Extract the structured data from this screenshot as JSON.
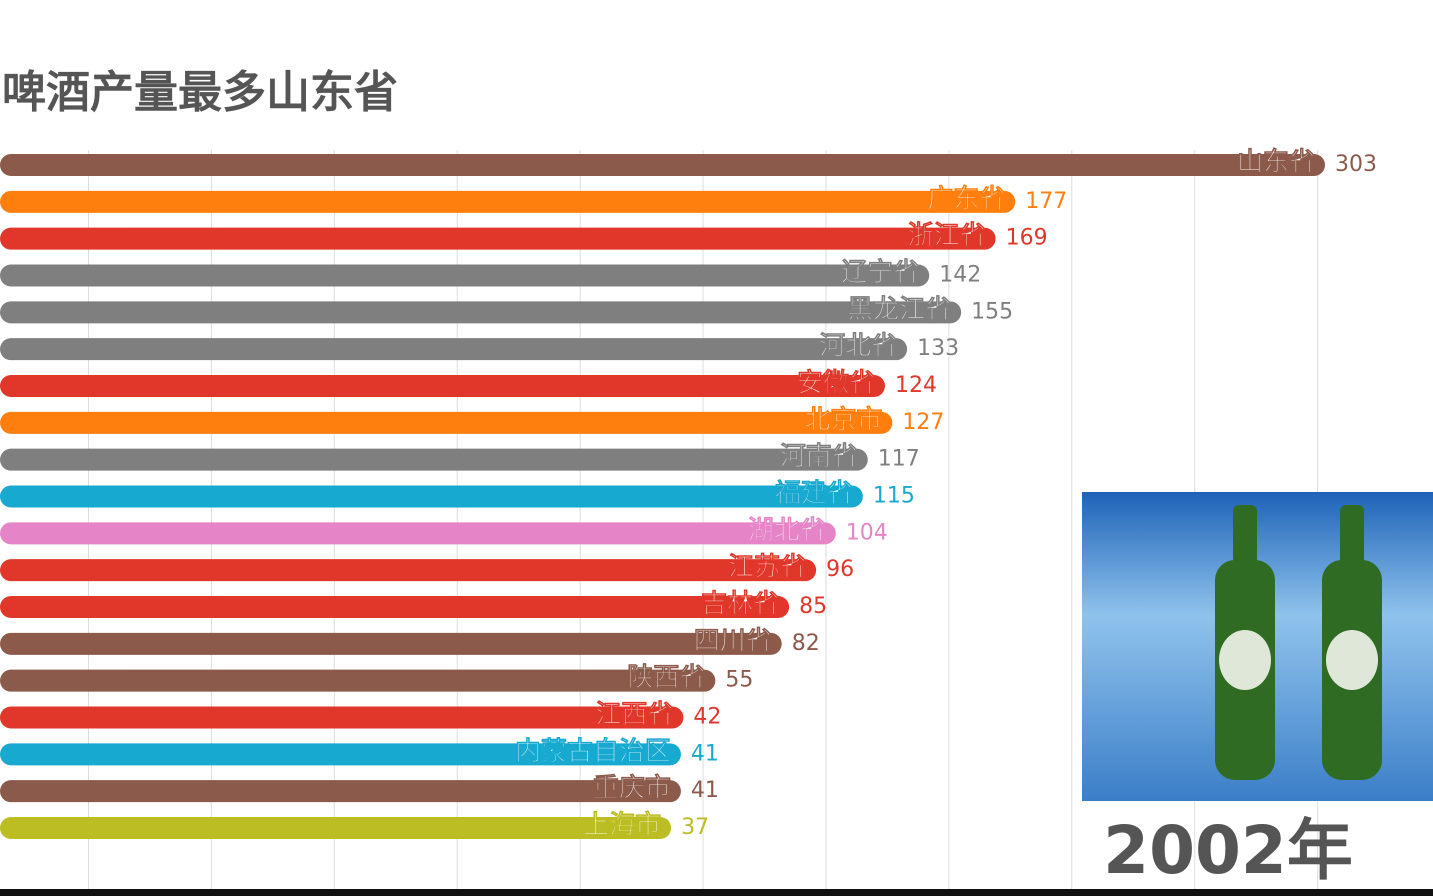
{
  "chart_data": {
    "type": "bar",
    "orientation": "horizontal",
    "title": "啤酒产量最多山东省",
    "annotation": "2002年",
    "categories": [
      "山东省",
      "广东省",
      "浙江省",
      "辽宁省",
      "黑龙江省",
      "河北省",
      "安徽省",
      "北京市",
      "河南省",
      "福建省",
      "湖北省",
      "江苏省",
      "吉林省",
      "四川省",
      "陕西省",
      "江西省",
      "内蒙古自治区",
      "重庆市",
      "上海市"
    ],
    "values": [
      303,
      177,
      169,
      142,
      155,
      133,
      124,
      127,
      117,
      115,
      104,
      96,
      85,
      82,
      55,
      42,
      41,
      41,
      37
    ],
    "colors": [
      "#8c5a4b",
      "#ff7f0e",
      "#e0372a",
      "#7f7f7f",
      "#7f7f7f",
      "#7f7f7f",
      "#e0372a",
      "#ff7f0e",
      "#7f7f7f",
      "#17a9cf",
      "#e585c8",
      "#e0372a",
      "#e0372a",
      "#8c5a4b",
      "#8c5a4b",
      "#e0372a",
      "#17a9cf",
      "#8c5a4b",
      "#bcbd22"
    ],
    "xlim": [
      -236,
      303
    ],
    "xticks": [
      -200,
      -150,
      -100,
      -50,
      0,
      50,
      100,
      150,
      200,
      250,
      300
    ],
    "grid": true
  }
}
